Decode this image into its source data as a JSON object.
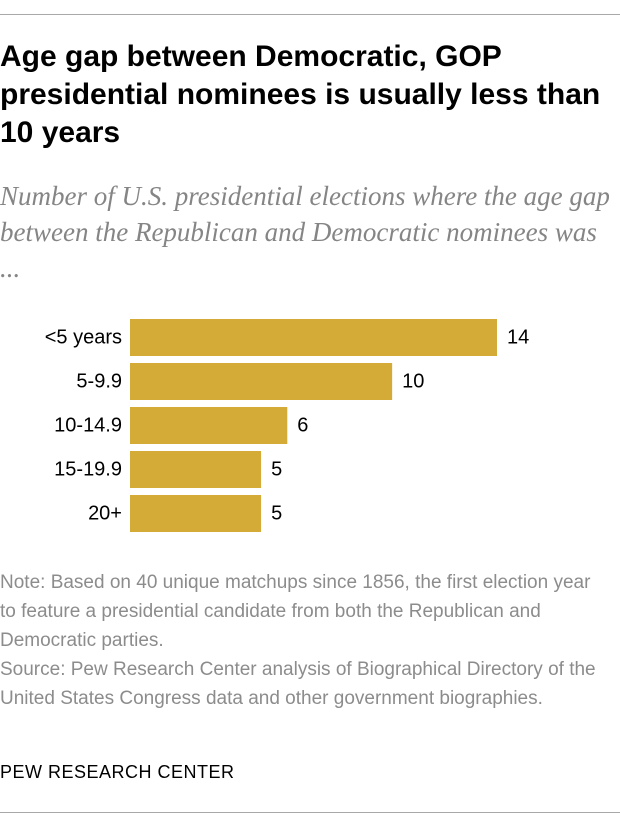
{
  "title": "Age gap between Democratic, GOP presidential nominees is usually less than 10 years",
  "subtitle": "Number of U.S. presidential elections where the age gap between the Republican and Democratic nominees was ...",
  "bar_color": "#d3ab36",
  "chart_data": {
    "type": "bar",
    "orientation": "horizontal",
    "categories": [
      "<5 years",
      "5-9.9",
      "10-14.9",
      "15-19.9",
      "20+"
    ],
    "values": [
      14,
      10,
      6,
      5,
      5
    ],
    "value_labels": [
      "14",
      "10",
      "6",
      "5",
      "5"
    ],
    "title": "Age gap between Democratic, GOP presidential nominees is usually less than 10 years",
    "xlabel": "",
    "ylabel": "",
    "xlim": [
      0,
      14
    ],
    "grid": false,
    "legend": "none"
  },
  "note": {
    "note_text": "Note: Based on 40 unique matchups since 1856, the first election year to feature a presidential candidate from both the Republican and Democratic parties.",
    "source_text": "Source: Pew Research Center analysis of Biographical Directory of the United States Congress data and other government biographies."
  },
  "brand": "PEW RESEARCH CENTER"
}
